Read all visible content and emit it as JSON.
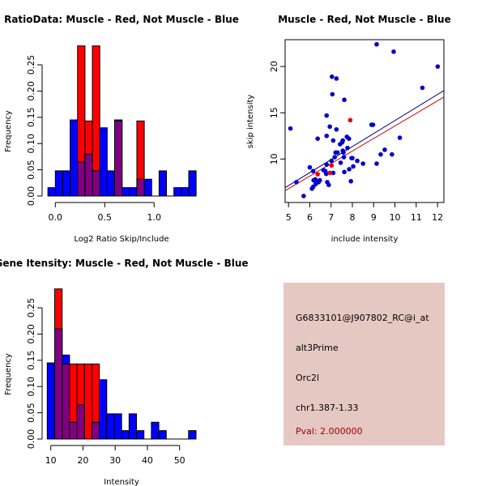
{
  "colors": {
    "blue": "#0000ff",
    "red": "#ff0000",
    "overlap": "#800080",
    "point_blue": "#0000cc",
    "point_red": "#ee0000",
    "line_blue": "#00008b",
    "line_red": "#cc0000",
    "panel_bg": "#e6c8c3",
    "pval": "#a00000"
  },
  "chart_data": [
    {
      "type": "bar",
      "title": "RatioData: Muscle - Red, Not Muscle - Blue",
      "xlabel": "Log2 Ratio Skip/Include",
      "ylabel": "Frequency",
      "bin_start": -0.075,
      "bin_width": 0.075,
      "xticks": [
        0.0,
        0.5,
        1.0
      ],
      "xtick_labels": [
        "0.0",
        "0.5",
        "1.0"
      ],
      "yticks": [
        0,
        0.05,
        0.1,
        0.15,
        0.2,
        0.25
      ],
      "ytick_labels": [
        "0.00",
        "0.05",
        "0.10",
        "0.15",
        "0.20",
        "0.25"
      ],
      "ylim": [
        0,
        0.29
      ],
      "series": [
        {
          "name": "Not Muscle",
          "color": "blue",
          "values": [
            0.016,
            0.048,
            0.048,
            0.145,
            0.065,
            0.08,
            0.048,
            0.13,
            0.048,
            0.145,
            0.016,
            0.016,
            0.032,
            0.032,
            0,
            0.048,
            0,
            0.016,
            0.016,
            0.048
          ]
        },
        {
          "name": "Muscle",
          "color": "red",
          "values": [
            0,
            0,
            0,
            0,
            0.286,
            0.143,
            0.286,
            0,
            0,
            0.143,
            0,
            0,
            0.143,
            0,
            0,
            0,
            0,
            0,
            0,
            0
          ]
        }
      ]
    },
    {
      "type": "scatter",
      "title": "Muscle - Red, Not Muscle - Blue",
      "xlabel": "include intensity",
      "ylabel": "skip intensity",
      "xlim": [
        4.84,
        12.3
      ],
      "ylim": [
        5.3,
        22.9
      ],
      "xticks": [
        5,
        6,
        7,
        8,
        9,
        10,
        11,
        12
      ],
      "xtick_labels": [
        "5",
        "6",
        "7",
        "8",
        "9",
        "10",
        "11",
        "12"
      ],
      "yticks": [
        10,
        15,
        20
      ],
      "ytick_labels": [
        "10",
        "15",
        "20"
      ],
      "series": [
        {
          "name": "Not Muscle",
          "color": "point_blue",
          "points": [
            [
              5.09,
              13.3
            ],
            [
              5.37,
              7.5
            ],
            [
              5.71,
              6.0
            ],
            [
              6.0,
              9.1
            ],
            [
              6.16,
              8.7
            ],
            [
              6.18,
              7.7
            ],
            [
              6.1,
              6.8
            ],
            [
              6.16,
              7.0
            ],
            [
              6.26,
              7.8
            ],
            [
              6.28,
              7.3
            ],
            [
              6.37,
              12.2
            ],
            [
              6.41,
              7.5
            ],
            [
              6.47,
              7.7
            ],
            [
              6.64,
              8.8
            ],
            [
              6.73,
              8.7
            ],
            [
              6.77,
              8.4
            ],
            [
              6.79,
              14.7
            ],
            [
              6.79,
              12.5
            ],
            [
              6.79,
              9.4
            ],
            [
              6.82,
              7.5
            ],
            [
              6.89,
              7.2
            ],
            [
              6.94,
              13.5
            ],
            [
              7.02,
              9.8
            ],
            [
              7.04,
              18.9
            ],
            [
              7.06,
              17.0
            ],
            [
              7.1,
              12.0
            ],
            [
              7.1,
              8.5
            ],
            [
              7.17,
              10.2
            ],
            [
              7.21,
              10.7
            ],
            [
              7.25,
              18.7
            ],
            [
              7.25,
              13.2
            ],
            [
              7.3,
              10.7
            ],
            [
              7.42,
              11.6
            ],
            [
              7.45,
              9.6
            ],
            [
              7.52,
              11.8
            ],
            [
              7.55,
              12.0
            ],
            [
              7.55,
              10.9
            ],
            [
              7.58,
              10.7
            ],
            [
              7.62,
              16.4
            ],
            [
              7.6,
              10.2
            ],
            [
              7.62,
              8.6
            ],
            [
              7.74,
              12.4
            ],
            [
              7.77,
              11.2
            ],
            [
              7.84,
              12.2
            ],
            [
              7.85,
              8.9
            ],
            [
              7.93,
              7.6
            ],
            [
              7.96,
              10.1
            ],
            [
              8.0,
              10.1
            ],
            [
              8.04,
              9.2
            ],
            [
              8.23,
              9.8
            ],
            [
              8.5,
              9.5
            ],
            [
              8.9,
              13.7
            ],
            [
              8.97,
              13.7
            ],
            [
              9.14,
              9.5
            ],
            [
              9.14,
              22.4
            ],
            [
              9.33,
              10.5
            ],
            [
              9.52,
              11.0
            ],
            [
              9.86,
              10.5
            ],
            [
              9.94,
              21.6
            ],
            [
              10.23,
              12.3
            ],
            [
              11.29,
              17.7
            ],
            [
              12.01,
              20.0
            ]
          ]
        },
        {
          "name": "Muscle",
          "color": "point_red",
          "points": [
            [
              6.37,
              8.35
            ],
            [
              6.94,
              8.5
            ],
            [
              7.02,
              9.3
            ],
            [
              7.9,
              14.2
            ]
          ]
        }
      ],
      "fit_lines": [
        {
          "name": "Not Muscle fit",
          "color": "line_blue",
          "from": [
            4.84,
            6.9
          ],
          "to": [
            12.3,
            17.4
          ]
        },
        {
          "name": "Muscle fit",
          "color": "line_red",
          "from": [
            4.84,
            6.58
          ],
          "to": [
            12.3,
            16.7
          ]
        }
      ]
    },
    {
      "type": "bar",
      "title": "Gene Itensity: Muscle - Red, Not Muscle - Blue",
      "xlabel": "Intensity",
      "ylabel": "Frequency",
      "bin_start": 8.9,
      "bin_width": 2.31,
      "xticks": [
        10,
        20,
        30,
        40,
        50
      ],
      "xtick_labels": [
        "10",
        "20",
        "30",
        "40",
        "50"
      ],
      "yticks": [
        0,
        0.05,
        0.1,
        0.15,
        0.2,
        0.25
      ],
      "ytick_labels": [
        "0.00",
        "0.05",
        "0.10",
        "0.15",
        "0.20",
        "0.25"
      ],
      "ylim": [
        0,
        0.29
      ],
      "series": [
        {
          "name": "Not Muscle",
          "color": "blue",
          "values": [
            0.145,
            0.21,
            0.16,
            0.032,
            0.065,
            0,
            0.032,
            0.113,
            0.048,
            0.048,
            0.016,
            0.048,
            0.016,
            0,
            0.032,
            0.016,
            0,
            0,
            0,
            0.016
          ]
        },
        {
          "name": "Muscle",
          "color": "red",
          "values": [
            0,
            0.286,
            0.143,
            0.143,
            0.143,
            0.143,
            0.143,
            0,
            0,
            0,
            0,
            0,
            0,
            0,
            0,
            0,
            0,
            0,
            0,
            0
          ]
        }
      ]
    }
  ],
  "info_panel": {
    "probe_id": "G6833101@J907802_RC@i_at",
    "event_type": "alt3Prime",
    "gene": "Orc2l",
    "location": "chr1.387-1.33",
    "pval": "Pval: 2.000000"
  }
}
